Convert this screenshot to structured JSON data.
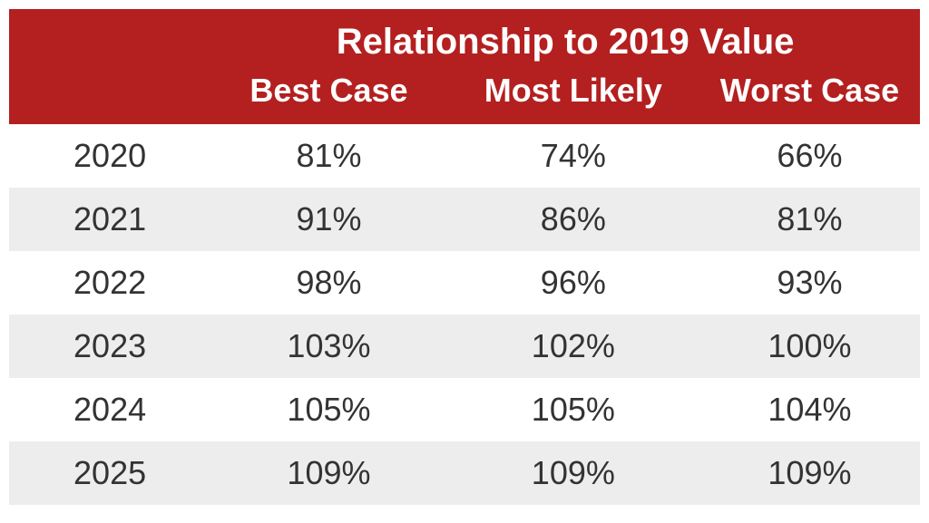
{
  "table": {
    "type": "table",
    "title": "Relationship to 2019 Value",
    "columns": [
      "Best Case",
      "Most Likely",
      "Worst Case"
    ],
    "years": [
      "2020",
      "2021",
      "2022",
      "2023",
      "2024",
      "2025"
    ],
    "rows": [
      [
        "81%",
        "74%",
        "66%"
      ],
      [
        "91%",
        "86%",
        "81%"
      ],
      [
        "98%",
        "96%",
        "93%"
      ],
      [
        "103%",
        "102%",
        "100%"
      ],
      [
        "105%",
        "105%",
        "104%"
      ],
      [
        "109%",
        "109%",
        "109%"
      ]
    ],
    "header_bg": "#b3201f",
    "header_fg": "#ffffff",
    "row_even_bg": "#ffffff",
    "row_odd_bg": "#ededed",
    "body_text_color": "#333333",
    "title_fontsize_pt": 30,
    "header_fontsize_pt": 27,
    "body_fontsize_pt": 27,
    "font_family": "Segoe UI",
    "column_alignment": [
      "center",
      "center",
      "center",
      "center"
    ]
  }
}
